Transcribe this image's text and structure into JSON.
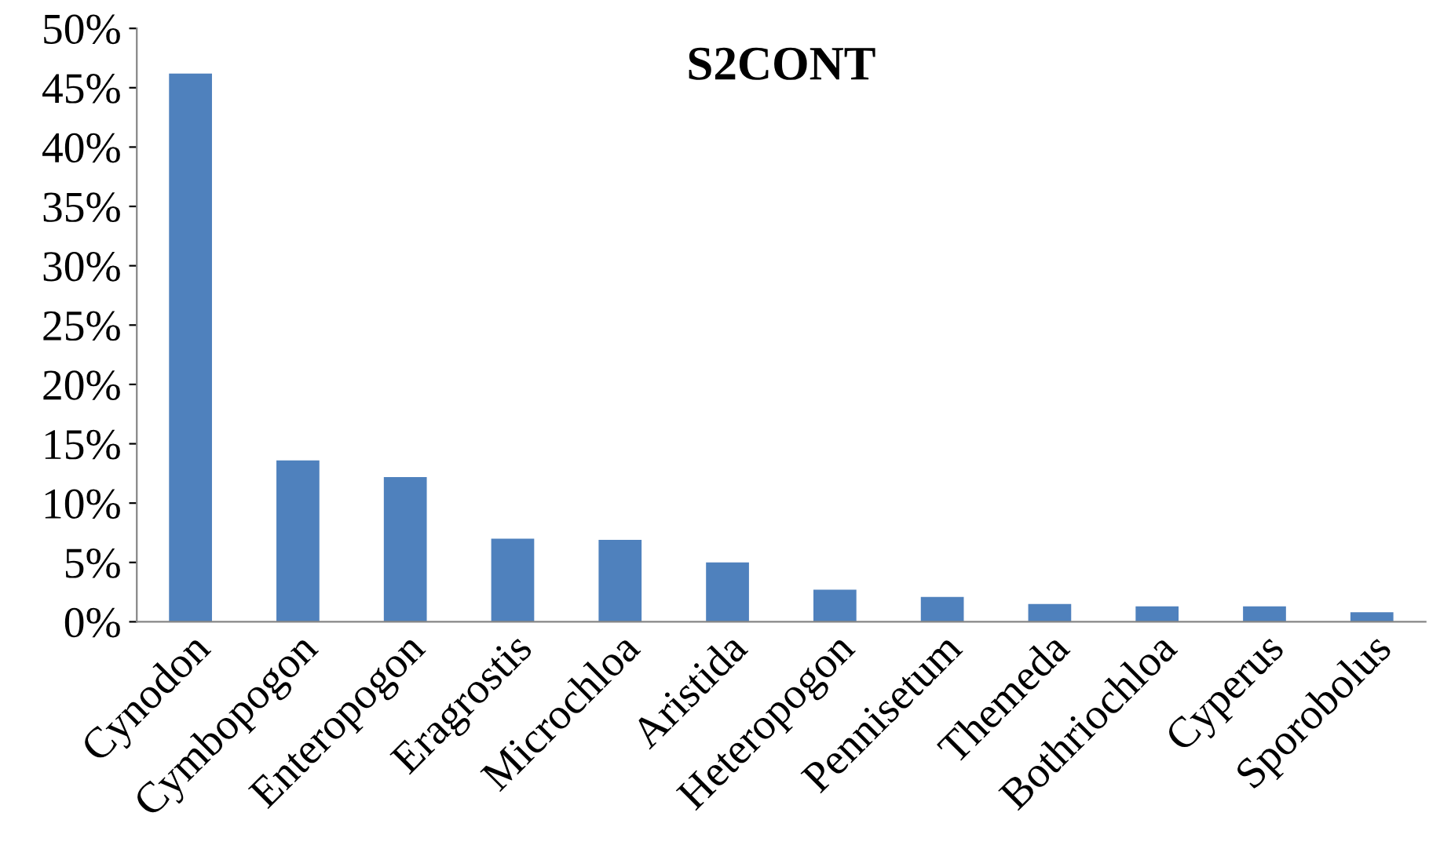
{
  "chart_data": {
    "type": "bar",
    "title": "S2CONT",
    "categories": [
      "Cynodon",
      "Cymbopogon",
      "Enteropogon",
      "Eragrostis",
      "Microchloa",
      "Aristida",
      "Heteropogon",
      "Pennisetum",
      "Themeda",
      "Bothriochloa",
      "Cyperus",
      "Sporobolus"
    ],
    "values": [
      46.2,
      13.6,
      12.2,
      7.0,
      6.9,
      5.0,
      2.7,
      2.1,
      1.5,
      1.3,
      1.3,
      0.8
    ],
    "color": "#4f81bd",
    "ylim": [
      0,
      50
    ],
    "yticks": [
      {
        "value": 0,
        "label": "0%"
      },
      {
        "value": 5,
        "label": "5%"
      },
      {
        "value": 10,
        "label": "10%"
      },
      {
        "value": 15,
        "label": "15%"
      },
      {
        "value": 20,
        "label": "20%"
      },
      {
        "value": 25,
        "label": "25%"
      },
      {
        "value": 30,
        "label": "30%"
      },
      {
        "value": 35,
        "label": "35%"
      },
      {
        "value": 40,
        "label": "40%"
      },
      {
        "value": 45,
        "label": "45%"
      },
      {
        "value": 50,
        "label": "50%"
      }
    ],
    "grid": false,
    "legend": false
  }
}
